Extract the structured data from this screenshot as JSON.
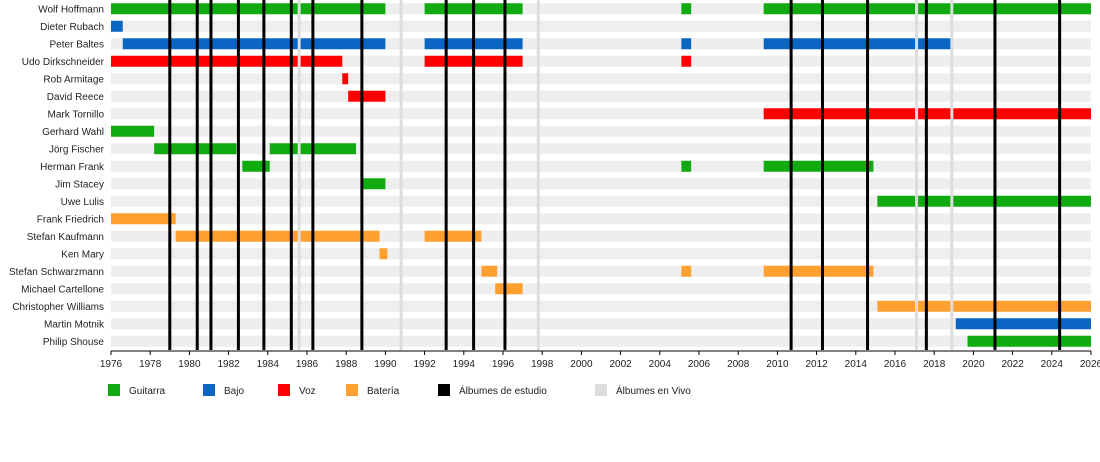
{
  "chart_data": {
    "type": "timeline",
    "x_range": [
      1976,
      2026
    ],
    "x_ticks": [
      "1976",
      "1978",
      "1980",
      "1982",
      "1984",
      "1986",
      "1988",
      "1990",
      "1992",
      "1994",
      "1996",
      "1998",
      "2000",
      "2002",
      "2004",
      "2006",
      "2008",
      "2010",
      "2012",
      "2014",
      "2016",
      "2018",
      "2020",
      "2022",
      "2024",
      "2026"
    ],
    "role_colors": {
      "guitar": "#11aa11",
      "bass": "#0a66c2",
      "vocals": "#ff0000",
      "drums": "#ffa030",
      "studio": "#000000",
      "live": "#dddddd"
    },
    "members": [
      {
        "name": "Wolf Hoffmann",
        "periods": [
          {
            "role": "guitar",
            "start": 1976,
            "end": 1990
          },
          {
            "role": "guitar",
            "start": 1992,
            "end": 1997
          },
          {
            "role": "guitar",
            "start": 2005.1,
            "end": 2005.6
          },
          {
            "role": "guitar",
            "start": 2009.3,
            "end": 2026
          }
        ]
      },
      {
        "name": "Dieter Rubach",
        "periods": [
          {
            "role": "bass",
            "start": 1976,
            "end": 1976.6
          }
        ]
      },
      {
        "name": "Peter Baltes",
        "periods": [
          {
            "role": "bass",
            "start": 1976.6,
            "end": 1990
          },
          {
            "role": "bass",
            "start": 1992,
            "end": 1997
          },
          {
            "role": "bass",
            "start": 2005.1,
            "end": 2005.6
          },
          {
            "role": "bass",
            "start": 2009.3,
            "end": 2018.9
          }
        ]
      },
      {
        "name": "Udo Dirkschneider",
        "periods": [
          {
            "role": "vocals",
            "start": 1976,
            "end": 1987.8
          },
          {
            "role": "vocals",
            "start": 1992,
            "end": 1997
          },
          {
            "role": "vocals",
            "start": 2005.1,
            "end": 2005.6
          }
        ]
      },
      {
        "name": "Rob Armitage",
        "periods": [
          {
            "role": "vocals",
            "start": 1987.8,
            "end": 1988.1
          }
        ]
      },
      {
        "name": "David Reece",
        "periods": [
          {
            "role": "vocals",
            "start": 1988.1,
            "end": 1990
          }
        ]
      },
      {
        "name": "Mark Tornillo",
        "periods": [
          {
            "role": "vocals",
            "start": 2009.3,
            "end": 2026
          }
        ]
      },
      {
        "name": "Gerhard Wahl",
        "periods": [
          {
            "role": "guitar",
            "start": 1976,
            "end": 1978.2
          }
        ]
      },
      {
        "name": "Jörg Fischer",
        "periods": [
          {
            "role": "guitar",
            "start": 1978.2,
            "end": 1982.4
          },
          {
            "role": "guitar",
            "start": 1984.1,
            "end": 1988.5
          }
        ]
      },
      {
        "name": "Herman Frank",
        "periods": [
          {
            "role": "guitar",
            "start": 1982.7,
            "end": 1984.1
          },
          {
            "role": "guitar",
            "start": 2005.1,
            "end": 2005.6
          },
          {
            "role": "guitar",
            "start": 2009.3,
            "end": 2014.9
          }
        ]
      },
      {
        "name": "Jim Stacey",
        "periods": [
          {
            "role": "guitar",
            "start": 1988.8,
            "end": 1990
          }
        ]
      },
      {
        "name": "Uwe Lulis",
        "periods": [
          {
            "role": "guitar",
            "start": 2015.1,
            "end": 2026
          }
        ]
      },
      {
        "name": "Frank Friedrich",
        "periods": [
          {
            "role": "drums",
            "start": 1976,
            "end": 1979.3
          }
        ]
      },
      {
        "name": "Stefan Kaufmann",
        "periods": [
          {
            "role": "drums",
            "start": 1979.3,
            "end": 1989.7
          },
          {
            "role": "drums",
            "start": 1992,
            "end": 1994.9
          }
        ]
      },
      {
        "name": "Ken Mary",
        "periods": [
          {
            "role": "drums",
            "start": 1989.7,
            "end": 1990.1
          }
        ]
      },
      {
        "name": "Stefan Schwarzmann",
        "periods": [
          {
            "role": "drums",
            "start": 1994.9,
            "end": 1995.7
          },
          {
            "role": "drums",
            "start": 2005.1,
            "end": 2005.6
          },
          {
            "role": "drums",
            "start": 2009.3,
            "end": 2014.9
          }
        ]
      },
      {
        "name": "Michael Cartellone",
        "periods": [
          {
            "role": "drums",
            "start": 1995.6,
            "end": 1997
          }
        ]
      },
      {
        "name": "Christopher Williams",
        "periods": [
          {
            "role": "drums",
            "start": 2015.1,
            "end": 2026
          }
        ]
      },
      {
        "name": "Martin Motnik",
        "periods": [
          {
            "role": "bass",
            "start": 2019.1,
            "end": 2026
          }
        ]
      },
      {
        "name": "Philip Shouse",
        "periods": [
          {
            "role": "guitar",
            "start": 2019.7,
            "end": 2026
          }
        ]
      }
    ],
    "studio_albums": [
      1979,
      1980.4,
      1981.1,
      1982.5,
      1983.8,
      1985.2,
      1986.3,
      1988.8,
      1993.1,
      1994.5,
      1996.1,
      2010.7,
      2012.3,
      2014.6,
      2017.6,
      2021.1,
      2024.4
    ],
    "live_albums": [
      1985.6,
      1990.8,
      1997.8,
      2017.1,
      2018.9
    ],
    "legend": [
      {
        "key": "guitar",
        "label": "Guitarra"
      },
      {
        "key": "bass",
        "label": "Bajo"
      },
      {
        "key": "vocals",
        "label": "Voz"
      },
      {
        "key": "drums",
        "label": "Batería"
      },
      {
        "key": "studio",
        "label": "Álbumes de estudio"
      },
      {
        "key": "live",
        "label": "Álbumes en Vivo"
      }
    ]
  }
}
